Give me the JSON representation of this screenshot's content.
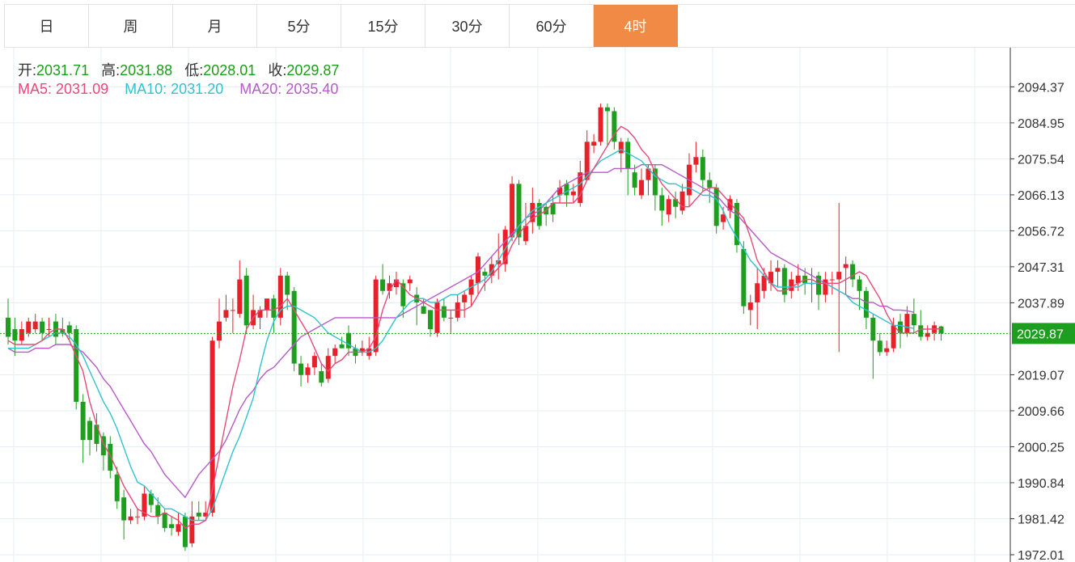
{
  "tabs": [
    {
      "label": "日",
      "active": false
    },
    {
      "label": "周",
      "active": false
    },
    {
      "label": "月",
      "active": false
    },
    {
      "label": "5分",
      "active": false
    },
    {
      "label": "15分",
      "active": false
    },
    {
      "label": "30分",
      "active": false
    },
    {
      "label": "60分",
      "active": false
    },
    {
      "label": "4时",
      "active": true
    }
  ],
  "ohlc": {
    "open_label": "开:",
    "open": "2031.71",
    "high_label": "高:",
    "high": "2031.88",
    "low_label": "低:",
    "low": "2028.01",
    "close_label": "收:",
    "close": "2029.87"
  },
  "ma": {
    "ma5_label": "MA5:",
    "ma5": "2031.09",
    "ma10_label": "MA10:",
    "ma10": "2031.20",
    "ma20_label": "MA20:",
    "ma20": "2035.40"
  },
  "colors": {
    "up": "#e8202a",
    "down": "#1e9e1e",
    "ma5": "#e84a78",
    "ma10": "#31c2cf",
    "ma20": "#b65ac9",
    "grid": "#e6edf3",
    "accent": "#f08a45"
  },
  "chart_data": {
    "type": "candlestick",
    "y_ticks": [
      "2094.37",
      "2084.95",
      "2075.54",
      "2066.13",
      "2056.72",
      "2047.31",
      "2037.89",
      "2029.87",
      "2019.07",
      "2009.66",
      "2000.25",
      "1990.84",
      "1981.42",
      "1972.01"
    ],
    "ylim": [
      1972.01,
      2104
    ],
    "last_price": 2029.87,
    "candles": [
      [
        2034,
        2029,
        2039,
        2027
      ],
      [
        2031,
        2028,
        2034,
        2024
      ],
      [
        2028,
        2031,
        2033,
        2027
      ],
      [
        2030,
        2033,
        2034,
        2029
      ],
      [
        2031,
        2033,
        2035,
        2030
      ],
      [
        2033,
        2030,
        2034,
        2028
      ],
      [
        2031,
        2031,
        2034,
        2029
      ],
      [
        2033,
        2029,
        2035,
        2027
      ],
      [
        2031,
        2030,
        2034,
        2029
      ],
      [
        2032,
        2030,
        2033,
        2028
      ],
      [
        2031,
        2012,
        2032,
        2010
      ],
      [
        2012,
        2002,
        2014,
        1996
      ],
      [
        2007,
        2002,
        2008,
        1998
      ],
      [
        2006,
        2001,
        2009,
        1999
      ],
      [
        2003,
        1998,
        2004,
        1994
      ],
      [
        2001,
        1994,
        2003,
        1992
      ],
      [
        1993,
        1986,
        1995,
        1984
      ],
      [
        1987,
        1981,
        1989,
        1976
      ],
      [
        1981,
        1982,
        1984,
        1980
      ],
      [
        1982,
        1982,
        1984,
        1980
      ],
      [
        1982,
        1988,
        1990,
        1981
      ],
      [
        1988,
        1985,
        1989,
        1983
      ],
      [
        1985,
        1982,
        1987,
        1980
      ],
      [
        1983,
        1979,
        1984,
        1978
      ],
      [
        1980,
        1979,
        1982,
        1977
      ],
      [
        1978,
        1980,
        1983,
        1977
      ],
      [
        1982,
        1974,
        1983,
        1973
      ],
      [
        1975,
        1982,
        1986,
        1974
      ],
      [
        1983,
        1982,
        1986,
        1981
      ],
      [
        1982,
        1983,
        1986,
        1982
      ],
      [
        1983,
        2028,
        2029,
        1982
      ],
      [
        2028,
        2033,
        2039,
        2026
      ],
      [
        2034,
        2036,
        2040,
        2033
      ],
      [
        2036,
        2036,
        2039,
        2030
      ],
      [
        2035,
        2044,
        2049,
        2034
      ],
      [
        2045,
        2032,
        2047,
        2030
      ],
      [
        2032,
        2036,
        2040,
        2031
      ],
      [
        2034,
        2036,
        2037,
        2031
      ],
      [
        2036,
        2039,
        2039,
        2034
      ],
      [
        2039,
        2034,
        2040,
        2030
      ],
      [
        2034,
        2045,
        2047,
        2032
      ],
      [
        2045,
        2040,
        2046,
        2036
      ],
      [
        2041,
        2022,
        2042,
        2020
      ],
      [
        2022,
        2019,
        2024,
        2016
      ],
      [
        2019,
        2021,
        2022,
        2017
      ],
      [
        2021,
        2024,
        2025,
        2019
      ],
      [
        2020,
        2017,
        2022,
        2016
      ],
      [
        2018,
        2024,
        2026,
        2017
      ],
      [
        2024,
        2026,
        2027,
        2022
      ],
      [
        2027,
        2026,
        2029,
        2026
      ],
      [
        2030,
        2026,
        2032,
        2024
      ],
      [
        2026,
        2024,
        2027,
        2022
      ],
      [
        2025,
        2026,
        2028,
        2024
      ],
      [
        2024,
        2026,
        2029,
        2023
      ],
      [
        2025,
        2044,
        2045,
        2024
      ],
      [
        2044,
        2041,
        2048,
        2040
      ],
      [
        2041,
        2043,
        2045,
        2039
      ],
      [
        2042,
        2044,
        2046,
        2040
      ],
      [
        2043,
        2037,
        2044,
        2034
      ],
      [
        2043,
        2044,
        2045,
        2041
      ],
      [
        2040,
        2038,
        2042,
        2032
      ],
      [
        2037,
        2035,
        2039,
        2035
      ],
      [
        2036,
        2031,
        2036,
        2029
      ],
      [
        2030,
        2038,
        2039,
        2029
      ],
      [
        2037,
        2034,
        2039,
        2033
      ],
      [
        2034,
        2034,
        2036,
        2030
      ],
      [
        2034,
        2038,
        2040,
        2033
      ],
      [
        2038,
        2040,
        2041,
        2034
      ],
      [
        2040,
        2044,
        2045,
        2037
      ],
      [
        2043,
        2050,
        2051,
        2040
      ],
      [
        2046,
        2045,
        2047,
        2041
      ],
      [
        2045,
        2048,
        2050,
        2043
      ],
      [
        2048,
        2049,
        2056,
        2044
      ],
      [
        2048,
        2057,
        2058,
        2046
      ],
      [
        2055,
        2069,
        2071,
        2054
      ],
      [
        2069,
        2055,
        2070,
        2053
      ],
      [
        2054,
        2058,
        2064,
        2053
      ],
      [
        2059,
        2064,
        2068,
        2056
      ],
      [
        2064,
        2058,
        2065,
        2057
      ],
      [
        2063,
        2061,
        2064,
        2058
      ],
      [
        2064,
        2061,
        2066,
        2059
      ],
      [
        2066,
        2068,
        2070,
        2064
      ],
      [
        2069,
        2066,
        2070,
        2063
      ],
      [
        2066,
        2067,
        2069,
        2064
      ],
      [
        2064,
        2072,
        2075,
        2063
      ],
      [
        2070,
        2080,
        2083,
        2070
      ],
      [
        2079,
        2080,
        2082,
        2077
      ],
      [
        2080,
        2089,
        2090,
        2079
      ],
      [
        2089,
        2088,
        2090,
        2079
      ],
      [
        2088,
        2080,
        2089,
        2078
      ],
      [
        2077,
        2080,
        2081,
        2072
      ],
      [
        2080,
        2073,
        2081,
        2066
      ],
      [
        2072,
        2068,
        2074,
        2066
      ],
      [
        2066,
        2070,
        2073,
        2065
      ],
      [
        2070,
        2073,
        2074,
        2066
      ],
      [
        2073,
        2066,
        2074,
        2062
      ],
      [
        2066,
        2062,
        2068,
        2058
      ],
      [
        2061,
        2065,
        2066,
        2059
      ],
      [
        2065,
        2063,
        2067,
        2060
      ],
      [
        2062,
        2067,
        2069,
        2061
      ],
      [
        2066,
        2074,
        2077,
        2063
      ],
      [
        2074,
        2076,
        2080,
        2072
      ],
      [
        2076,
        2070,
        2078,
        2067
      ],
      [
        2070,
        2068,
        2072,
        2064
      ],
      [
        2068,
        2058,
        2069,
        2056
      ],
      [
        2059,
        2061,
        2063,
        2057
      ],
      [
        2062,
        2065,
        2066,
        2060
      ],
      [
        2064,
        2053,
        2065,
        2051
      ],
      [
        2052,
        2037,
        2054,
        2035
      ],
      [
        2036,
        2038,
        2040,
        2032
      ],
      [
        2038,
        2043,
        2047,
        2031
      ],
      [
        2041,
        2045,
        2047,
        2039
      ],
      [
        2043,
        2046,
        2049,
        2041
      ],
      [
        2046,
        2047,
        2049,
        2042
      ],
      [
        2047,
        2040,
        2048,
        2038
      ],
      [
        2041,
        2044,
        2046,
        2039
      ],
      [
        2043,
        2045,
        2048,
        2041
      ],
      [
        2045,
        2043,
        2047,
        2040
      ],
      [
        2043,
        2043,
        2047,
        2038
      ],
      [
        2045,
        2040,
        2046,
        2036
      ],
      [
        2040,
        2044,
        2046,
        2038
      ],
      [
        2044,
        2044,
        2046,
        2040
      ],
      [
        2044,
        2046,
        2064,
        2025
      ],
      [
        2047,
        2048,
        2050,
        2040
      ],
      [
        2048,
        2044,
        2049,
        2042
      ],
      [
        2044,
        2041,
        2045,
        2036
      ],
      [
        2041,
        2034,
        2042,
        2031
      ],
      [
        2034,
        2028,
        2035,
        2018
      ],
      [
        2028,
        2025,
        2030,
        2024
      ],
      [
        2025,
        2026,
        2028,
        2024
      ],
      [
        2026,
        2032,
        2034,
        2025
      ],
      [
        2033,
        2030,
        2035,
        2026
      ],
      [
        2030,
        2035,
        2037,
        2029
      ],
      [
        2035,
        2032,
        2039,
        2030
      ],
      [
        2032,
        2029,
        2036,
        2028
      ],
      [
        2029,
        2030,
        2032,
        2028
      ],
      [
        2030,
        2032,
        2033,
        2028
      ],
      [
        2031.71,
        2029.87,
        2031.88,
        2028.01
      ]
    ],
    "ma5": [
      2028,
      2027,
      2027,
      2027,
      2027,
      2028,
      2030,
      2031,
      2031,
      2028,
      2024,
      2020,
      2012,
      2006,
      2001,
      1998,
      1994,
      1990,
      1987,
      1984,
      1983,
      1982,
      1982,
      1983,
      1982,
      1981,
      1979,
      1980,
      1980,
      1981,
      1989,
      1998,
      2007,
      2016,
      2023,
      2031,
      2034,
      2036,
      2036,
      2036,
      2037,
      2039,
      2036,
      2033,
      2030,
      2026,
      2022,
      2020,
      2022,
      2023,
      2025,
      2025,
      2025,
      2026,
      2029,
      2036,
      2041,
      2044,
      2042,
      2040,
      2039,
      2038,
      2037,
      2036,
      2036,
      2036,
      2036,
      2036,
      2037,
      2040,
      2043,
      2045,
      2047,
      2049,
      2053,
      2056,
      2058,
      2060,
      2061,
      2062,
      2064,
      2064,
      2064,
      2064,
      2066,
      2070,
      2073,
      2076,
      2079,
      2082,
      2084,
      2083,
      2081,
      2078,
      2076,
      2072,
      2069,
      2067,
      2065,
      2063,
      2063,
      2065,
      2067,
      2068,
      2068,
      2066,
      2064,
      2062,
      2060,
      2055,
      2049,
      2046,
      2043,
      2041,
      2041,
      2042,
      2043,
      2044,
      2044,
      2043,
      2043,
      2043,
      2043,
      2044,
      2045,
      2046,
      2045,
      2042,
      2039,
      2035,
      2032,
      2030,
      2030,
      2030,
      2031,
      2031,
      2031,
      2031.1
    ],
    "ma10": [
      2026,
      2026,
      2026,
      2026,
      2027,
      2028,
      2029,
      2030,
      2030,
      2029,
      2027,
      2024,
      2020,
      2016,
      2012,
      2009,
      2005,
      2000,
      1995,
      1991,
      1990,
      1988,
      1986,
      1984,
      1984,
      1983,
      1982,
      1981,
      1981,
      1981,
      1984,
      1989,
      1994,
      1999,
      2003,
      2008,
      2013,
      2021,
      2028,
      2033,
      2036,
      2037,
      2037,
      2036,
      2035,
      2034,
      2032,
      2030,
      2029,
      2028,
      2027,
      2026,
      2025,
      2025,
      2026,
      2028,
      2031,
      2034,
      2036,
      2038,
      2039,
      2039,
      2038,
      2038,
      2039,
      2040,
      2040,
      2041,
      2042,
      2043,
      2044,
      2046,
      2049,
      2052,
      2055,
      2058,
      2060,
      2062,
      2063,
      2064,
      2065,
      2066,
      2067,
      2068,
      2069,
      2071,
      2073,
      2075,
      2076,
      2077,
      2078,
      2077,
      2076,
      2075,
      2073,
      2071,
      2070,
      2069,
      2069,
      2068,
      2068,
      2067,
      2066,
      2066,
      2065,
      2062,
      2058,
      2055,
      2052,
      2049,
      2047,
      2045,
      2043,
      2042,
      2042,
      2042,
      2042,
      2043,
      2043,
      2043,
      2043,
      2042,
      2041,
      2040,
      2038,
      2037,
      2036,
      2035,
      2034,
      2033,
      2032,
      2032,
      2031.5,
      2031.2
    ],
    "ma20": [
      2026,
      2025,
      2025,
      2025,
      2026,
      2026,
      2026,
      2027,
      2027,
      2027,
      2026,
      2025,
      2023,
      2021,
      2018,
      2016,
      2013,
      2010,
      2007,
      2004,
      2001,
      1999,
      1996,
      1993,
      1991,
      1989,
      1987,
      1990,
      1993,
      1995,
      1997,
      1999,
      2002,
      2006,
      2010,
      2013,
      2015,
      2018,
      2020,
      2021,
      2023,
      2025,
      2027,
      2029,
      2030,
      2031,
      2032,
      2033,
      2034,
      2034,
      2034,
      2034,
      2034,
      2034,
      2034,
      2034,
      2034,
      2034,
      2035,
      2036,
      2037,
      2038,
      2039,
      2040,
      2041,
      2042,
      2043,
      2044,
      2045,
      2046,
      2048,
      2050,
      2052,
      2054,
      2056,
      2058,
      2060,
      2061,
      2062,
      2064,
      2066,
      2068,
      2069,
      2070,
      2071,
      2072,
      2072,
      2072,
      2072,
      2073,
      2073,
      2073,
      2073,
      2074,
      2074,
      2074,
      2074,
      2073,
      2072,
      2071,
      2070,
      2069,
      2068,
      2067,
      2066,
      2064,
      2062,
      2061,
      2059,
      2057,
      2055,
      2053,
      2051,
      2050,
      2049,
      2048,
      2047,
      2046,
      2045,
      2044,
      2043,
      2042,
      2041,
      2040,
      2039,
      2039,
      2038,
      2038,
      2037,
      2037,
      2036,
      2036,
      2035.8,
      2035.4
    ]
  }
}
